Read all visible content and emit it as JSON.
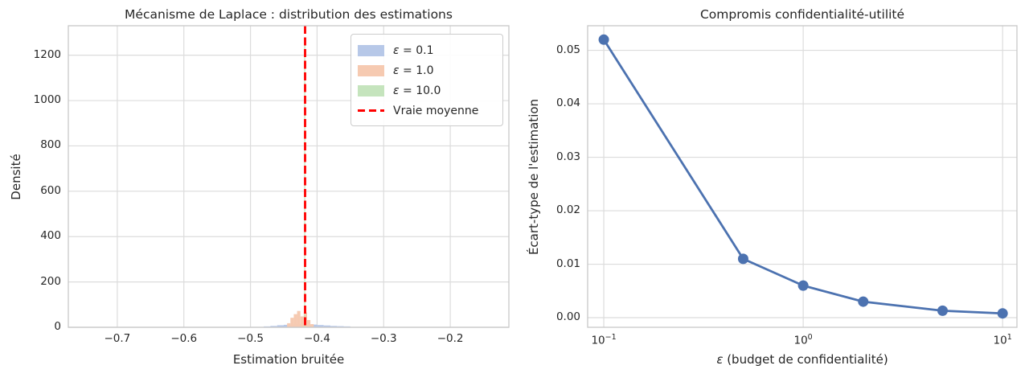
{
  "figure": {
    "background": "#ffffff",
    "text_color": "#262626",
    "grid_color": "#dcdcdc",
    "spine_color": "#c8c8c8"
  },
  "chart_data": [
    {
      "type": "histogram",
      "title": "Mécanisme de Laplace : distribution des estimations",
      "xlabel": "Estimation bruitée",
      "ylabel": "Densité",
      "xlim": [
        -0.7735,
        -0.112
      ],
      "ylim": [
        0,
        1330
      ],
      "xticks": [
        -0.7,
        -0.6,
        -0.5,
        -0.4,
        -0.3,
        -0.2
      ],
      "yticks": [
        0,
        200,
        400,
        600,
        800,
        1000,
        1200
      ],
      "grid": true,
      "series": [
        {
          "name": "ε = 0.1",
          "fill": "#b7c8e8",
          "bin_width": 0.01,
          "bars": [
            [
              -0.475,
              4
            ],
            [
              -0.465,
              6
            ],
            [
              -0.455,
              9
            ],
            [
              -0.445,
              11
            ],
            [
              -0.435,
              13
            ],
            [
              -0.425,
              14
            ],
            [
              -0.415,
              13
            ],
            [
              -0.405,
              12
            ],
            [
              -0.395,
              10
            ],
            [
              -0.385,
              8
            ],
            [
              -0.375,
              6
            ],
            [
              -0.365,
              5
            ],
            [
              -0.355,
              4
            ]
          ]
        },
        {
          "name": "ε = 1.0",
          "fill": "#f6cab1",
          "bin_width": 0.005,
          "bars": [
            [
              -0.4425,
              18
            ],
            [
              -0.4375,
              42
            ],
            [
              -0.4325,
              58
            ],
            [
              -0.4275,
              72
            ],
            [
              -0.4225,
              48
            ],
            [
              -0.4175,
              65
            ],
            [
              -0.4125,
              32
            ],
            [
              -0.4075,
              14
            ]
          ]
        },
        {
          "name": "ε = 10.0",
          "fill": "#c5e4bd",
          "bin_width": 0.0015,
          "bars": [
            [
              -0.4185,
              1255
            ]
          ]
        }
      ],
      "vline": {
        "x": -0.418,
        "color": "#ff0000",
        "style": "dashed",
        "label": "Vraie moyenne"
      },
      "legend": {
        "position": "upper right",
        "items": [
          {
            "label": "ε = 0.1",
            "swatch": "patch",
            "color": "#b7c8e8"
          },
          {
            "label": "ε = 1.0",
            "swatch": "patch",
            "color": "#f6cab1"
          },
          {
            "label": "ε = 10.0",
            "swatch": "patch",
            "color": "#c5e4bd"
          },
          {
            "label": "Vraie moyenne",
            "swatch": "dashed-line",
            "color": "#ff0000"
          }
        ]
      }
    },
    {
      "type": "line",
      "title": "Compromis confidentialité-utilité",
      "xlabel": "ε (budget de confidentialité)",
      "ylabel": "Écart-type de l'estimation",
      "xscale": "log",
      "xlim": [
        0.083,
        11.8
      ],
      "ylim": [
        -0.0018,
        0.0546
      ],
      "x": [
        0.1,
        0.5,
        1.0,
        2.0,
        5.0,
        10.0
      ],
      "y": [
        0.052,
        0.011,
        0.006,
        0.003,
        0.0013,
        0.0008
      ],
      "xtick_exponents": [
        -1,
        0,
        1
      ],
      "yticks": [
        0,
        0.01,
        0.02,
        0.03,
        0.04,
        0.05
      ],
      "line_color": "#4C72B0",
      "marker": "circle",
      "grid": true
    }
  ]
}
